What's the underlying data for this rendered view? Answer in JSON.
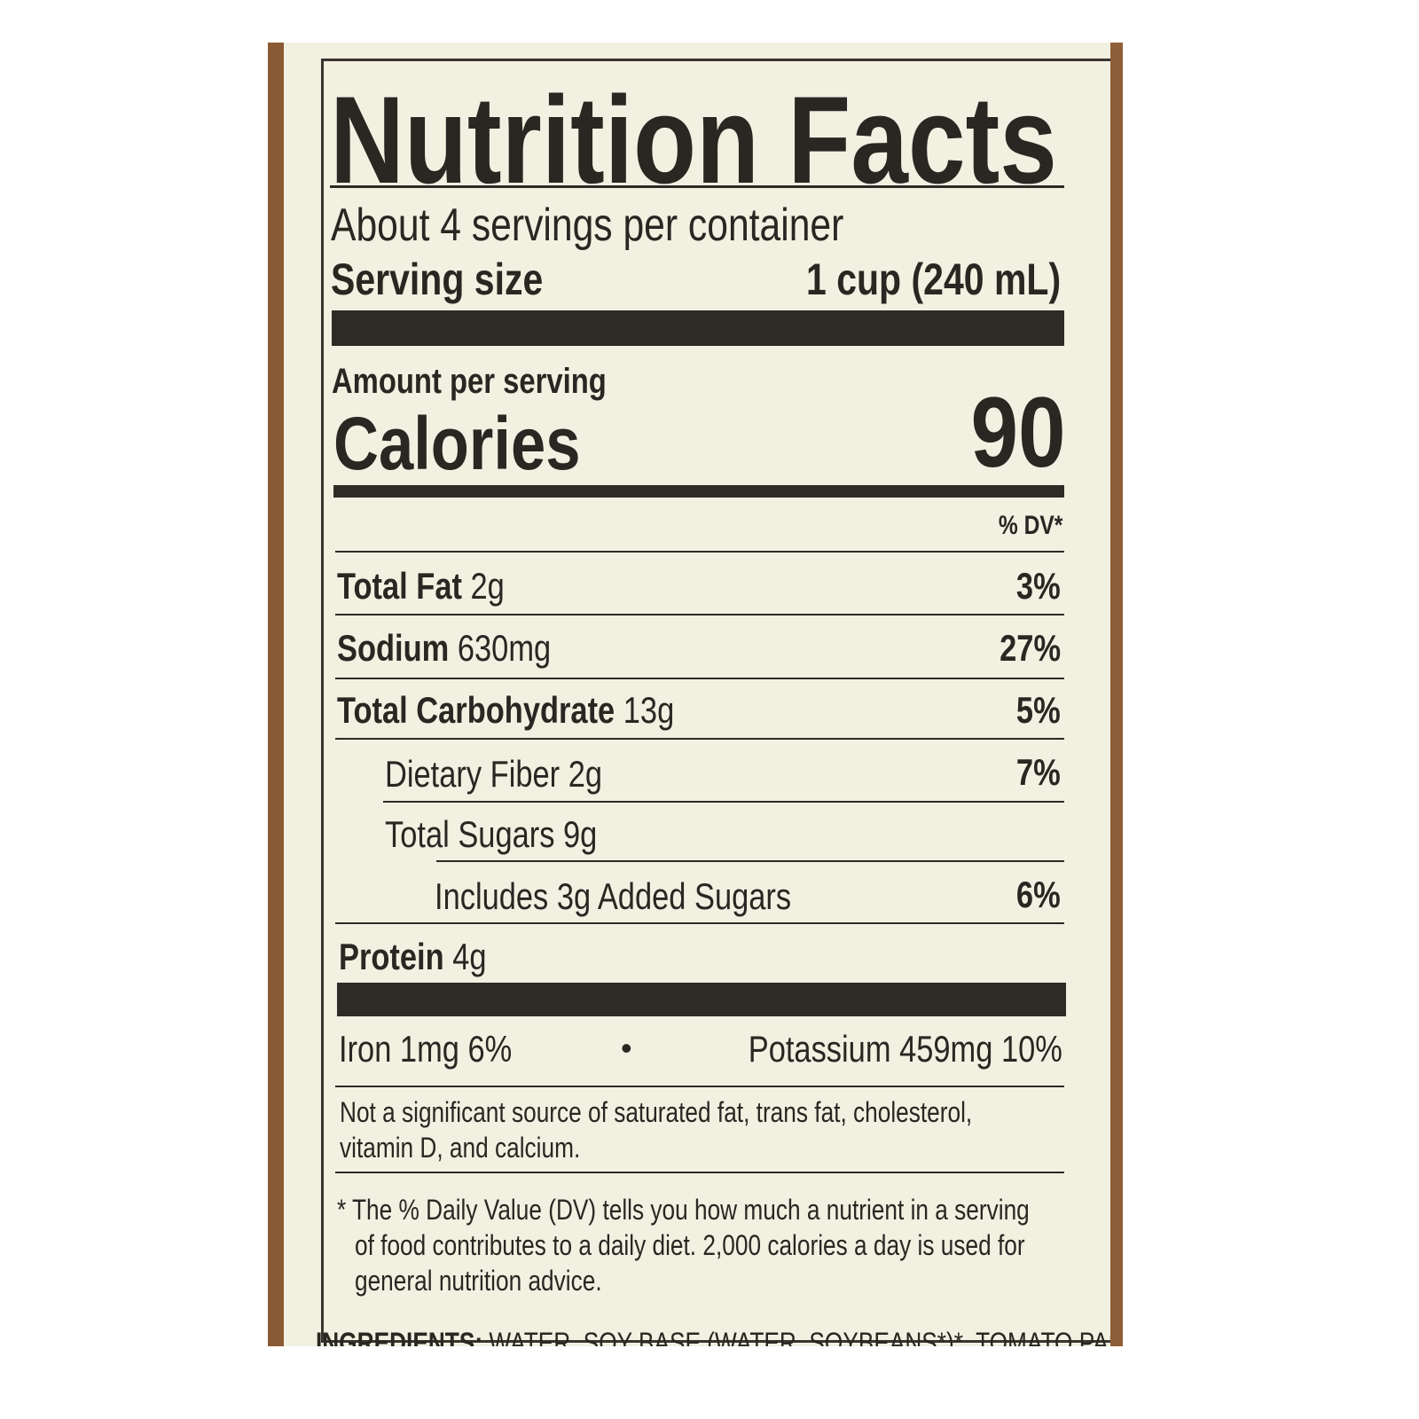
{
  "title": "Nutrition Facts",
  "servings_per_container": "About 4 servings per container",
  "serving_size": {
    "label": "Serving size",
    "value": "1 cup (240 mL)"
  },
  "amount_per_serving": "Amount per serving",
  "calories": {
    "label": "Calories",
    "value": "90"
  },
  "dv_header": "% DV*",
  "nutrients": [
    {
      "name": "Total Fat",
      "amount": "2g",
      "dv": "3%"
    },
    {
      "name": "Sodium",
      "amount": "630mg",
      "dv": "27%"
    },
    {
      "name": "Total Carbohydrate",
      "amount": "13g",
      "dv": "5%"
    },
    {
      "name": "Dietary Fiber 2g",
      "dv": "7%"
    },
    {
      "name": "Total Sugars 9g"
    },
    {
      "name": "Includes 3g Added Sugars",
      "dv": "6%"
    },
    {
      "name": "Protein",
      "amount": "4g"
    }
  ],
  "minerals": {
    "iron": "Iron 1mg 6%",
    "separator": "•",
    "potassium": "Potassium 459mg 10%"
  },
  "not_significant": [
    "Not a significant source of saturated fat, trans fat, cholesterol,",
    "vitamin D, and calcium."
  ],
  "dv_footnote": [
    "* The % Daily Value (DV) tells you how much a nutrient in a serving",
    "of food contributes to a daily diet. 2,000 calories a day is used for",
    "general nutrition advice."
  ],
  "ingredients": {
    "label": "INGREDIENTS:",
    "text": "WATER, SOY BASE (WATER, SOYBEANS*)*, TOMATO PASTE*"
  }
}
